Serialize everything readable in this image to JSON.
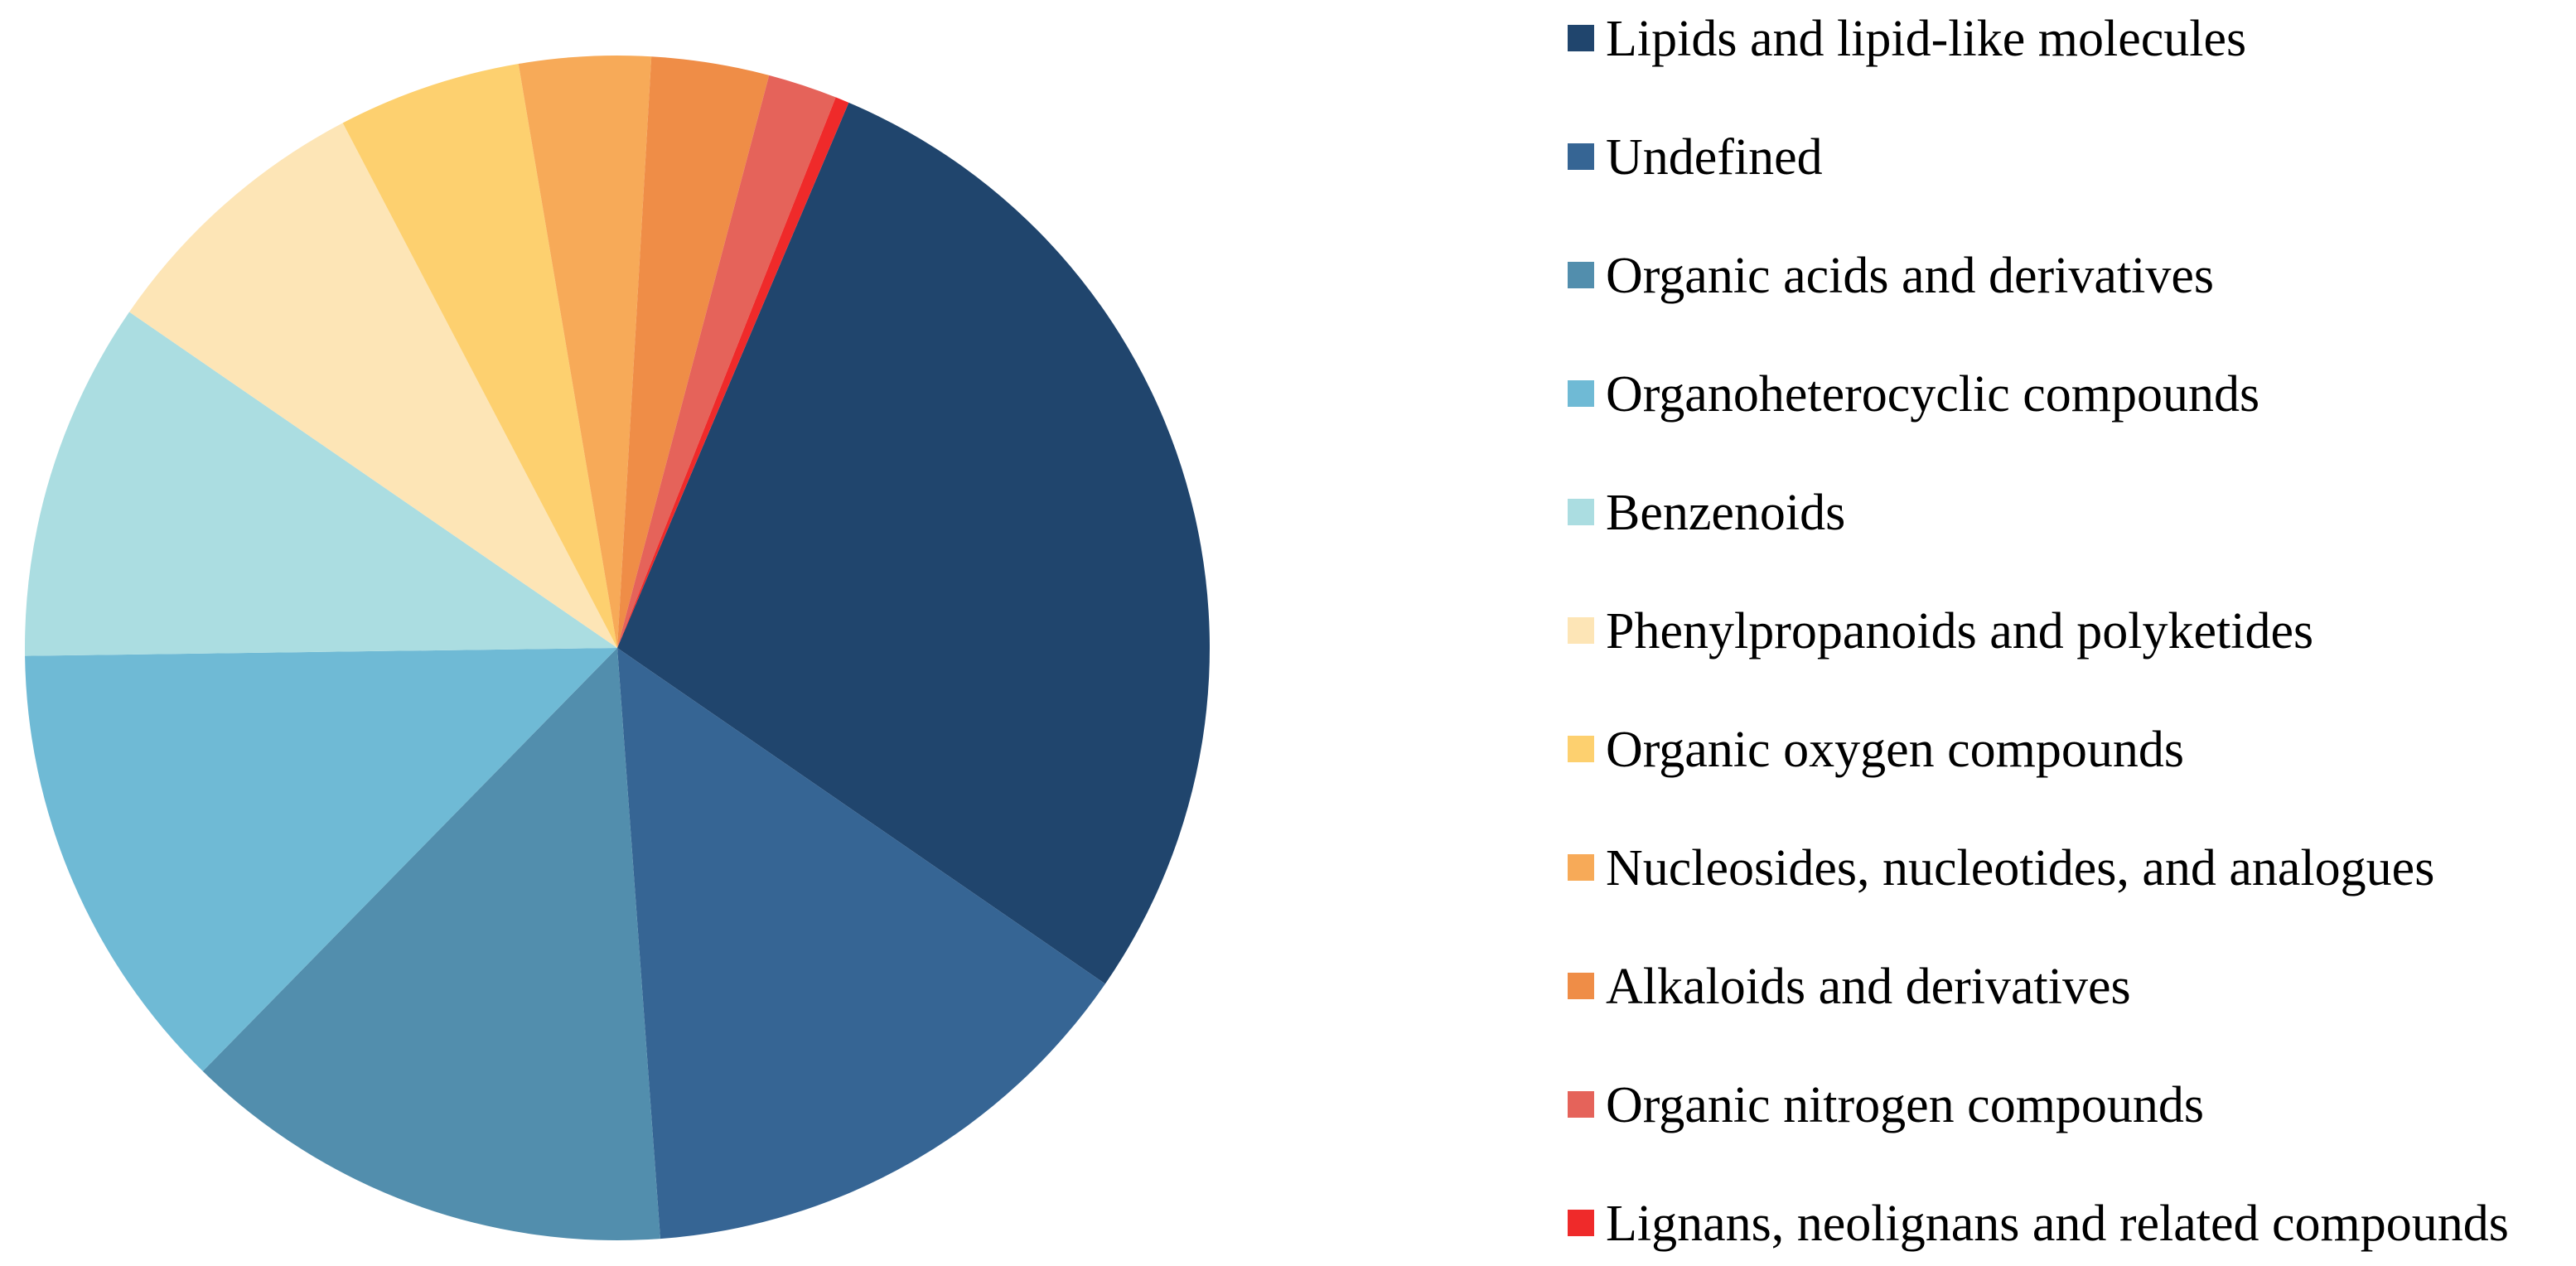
{
  "chart_data": {
    "type": "pie",
    "title": "",
    "start_angle_deg": 23,
    "direction": "clockwise",
    "legend_position": "right",
    "slices": [
      {
        "label": "Lipids and lipid-like molecules",
        "value": 29.9,
        "color": "#20456d"
      },
      {
        "label": "Undefined",
        "value": 15.1,
        "color": "#366594"
      },
      {
        "label": "Organic acids and derivatives",
        "value": 14.3,
        "color": "#528ead"
      },
      {
        "label": "Organoheterocyclic compounds",
        "value": 13.2,
        "color": "#6fbad5"
      },
      {
        "label": "Benzenoids",
        "value": 10.4,
        "color": "#abdde1"
      },
      {
        "label": "Phenylpropanoids and polyketides",
        "value": 8.2,
        "color": "#fde5b6"
      },
      {
        "label": "Organic oxygen compounds",
        "value": 5.3,
        "color": "#fdd06f"
      },
      {
        "label": "Nucleosides, nucleotides, and analogues",
        "value": 3.8,
        "color": "#f7aa58"
      },
      {
        "label": "Alkaloids and derivatives",
        "value": 3.4,
        "color": "#ef8d47"
      },
      {
        "label": "Organic nitrogen compounds",
        "value": 2.0,
        "color": "#e5635a"
      },
      {
        "label": "Lignans, neolignans and related compounds",
        "value": 0.4,
        "color": "#ef2a2a"
      }
    ]
  }
}
